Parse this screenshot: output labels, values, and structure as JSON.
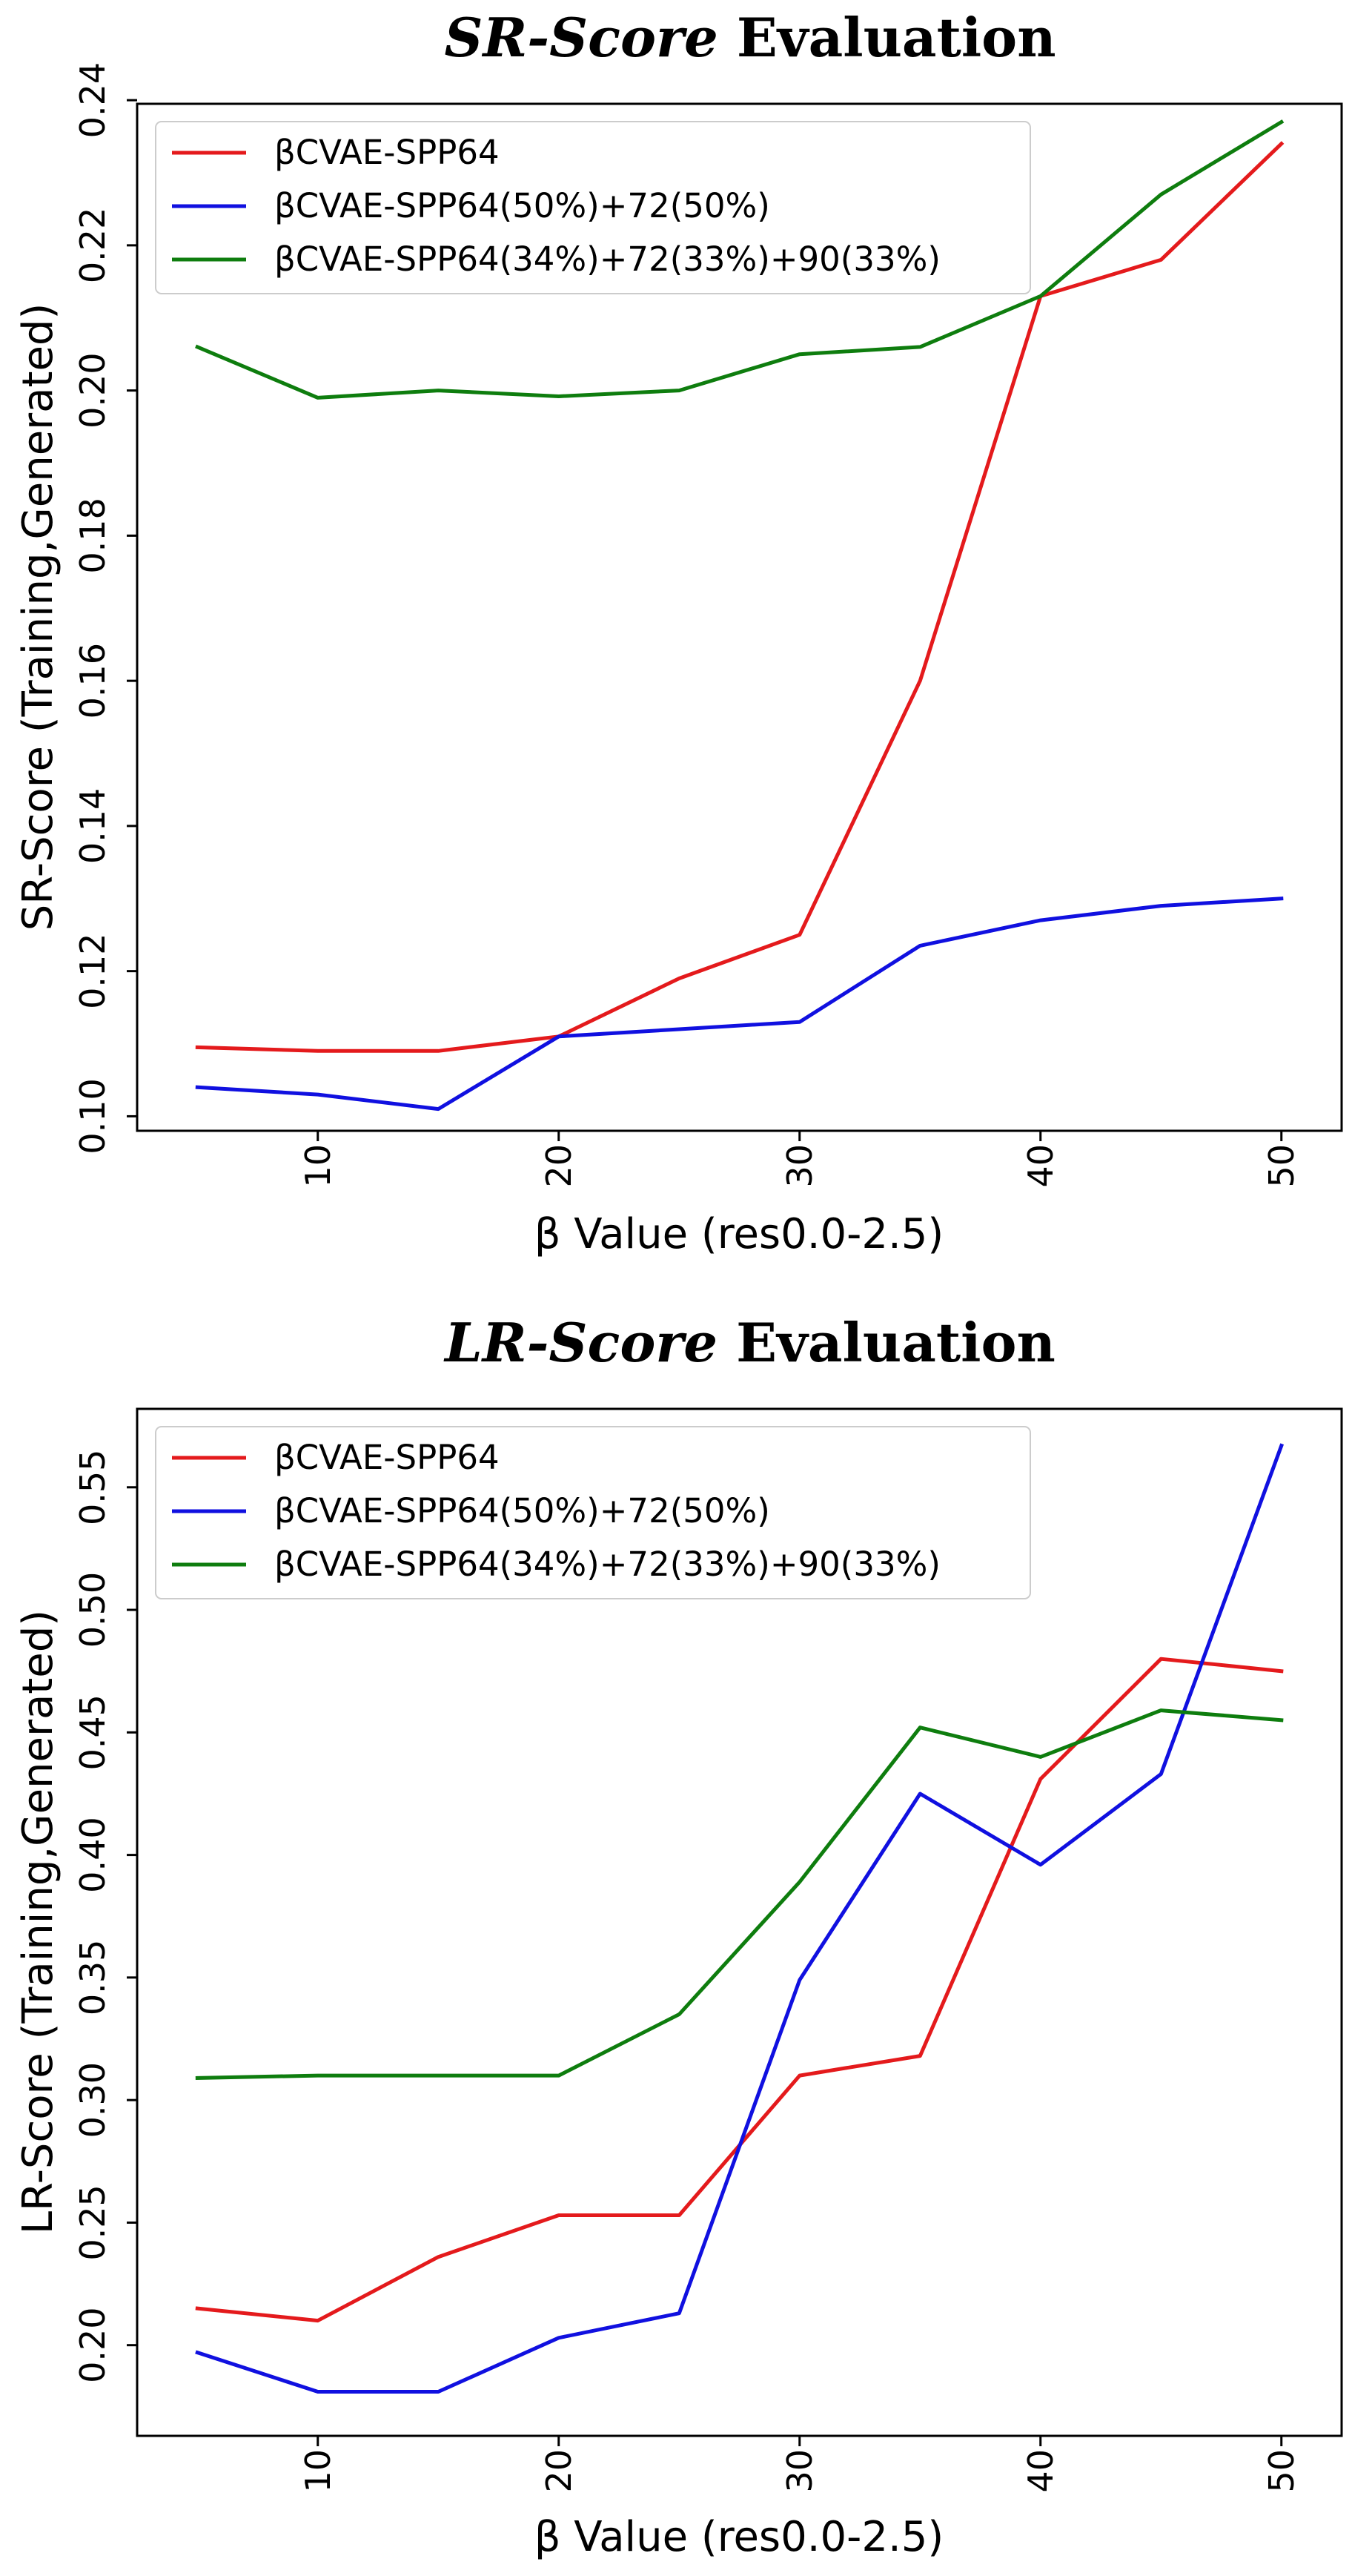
{
  "chart_data": [
    {
      "type": "line",
      "title_italic": "SR-Score",
      "title_rest": " Evaluation",
      "xlabel": "β Value (res0.0-2.5)",
      "ylabel": "SR-Score (Training,Generated)",
      "xlim": [
        2.5,
        52.5
      ],
      "ylim": [
        0.098,
        0.2395
      ],
      "xticks": [
        10,
        20,
        30,
        40,
        50
      ],
      "xtick_labels": [
        "10",
        "20",
        "30",
        "40",
        "50"
      ],
      "yticks": [
        0.1,
        0.12,
        0.14,
        0.16,
        0.18,
        0.2,
        0.22,
        0.24
      ],
      "ytick_labels": [
        "0.10",
        "0.12",
        "0.14",
        "0.16",
        "0.18",
        "0.20",
        "0.22",
        "0.24"
      ],
      "legend_position": "upper-left",
      "x": [
        5,
        10,
        15,
        20,
        25,
        30,
        35,
        40,
        45,
        50
      ],
      "series": [
        {
          "name": "βCVAE-SPP64",
          "color": "#e41a1c",
          "values": [
            0.1095,
            0.109,
            0.109,
            0.111,
            0.119,
            0.125,
            0.16,
            0.213,
            0.218,
            0.234
          ]
        },
        {
          "name": "βCVAE-SPP64(50%)+72(50%)",
          "color": "#1010e0",
          "values": [
            0.104,
            0.103,
            0.101,
            0.111,
            0.112,
            0.113,
            0.1235,
            0.127,
            0.129,
            0.13
          ]
        },
        {
          "name": "βCVAE-SPP64(34%)+72(33%)+90(33%)",
          "color": "#0e7d0e",
          "values": [
            0.206,
            0.199,
            0.2,
            0.1992,
            0.2,
            0.205,
            0.206,
            0.213,
            0.227,
            0.237
          ]
        }
      ]
    },
    {
      "type": "line",
      "title_italic": "LR-Score",
      "title_rest": " Evaluation",
      "xlabel": "β Value (res0.0-2.5)",
      "ylabel": "LR-Score (Training,Generated)",
      "xlim": [
        2.5,
        52.5
      ],
      "ylim": [
        0.163,
        0.582
      ],
      "xticks": [
        10,
        20,
        30,
        40,
        50
      ],
      "xtick_labels": [
        "10",
        "20",
        "30",
        "40",
        "50"
      ],
      "yticks": [
        0.2,
        0.25,
        0.3,
        0.35,
        0.4,
        0.45,
        0.5,
        0.55
      ],
      "ytick_labels": [
        "0.20",
        "0.25",
        "0.30",
        "0.35",
        "0.40",
        "0.45",
        "0.50",
        "0.55"
      ],
      "legend_position": "upper-left",
      "x": [
        5,
        10,
        15,
        20,
        25,
        30,
        35,
        40,
        45,
        50
      ],
      "series": [
        {
          "name": "βCVAE-SPP64",
          "color": "#e41a1c",
          "values": [
            0.215,
            0.21,
            0.236,
            0.253,
            0.253,
            0.31,
            0.318,
            0.431,
            0.48,
            0.475
          ]
        },
        {
          "name": "βCVAE-SPP64(50%)+72(50%)",
          "color": "#1010e0",
          "values": [
            0.197,
            0.181,
            0.181,
            0.203,
            0.213,
            0.349,
            0.425,
            0.396,
            0.433,
            0.567
          ]
        },
        {
          "name": "βCVAE-SPP64(34%)+72(33%)+90(33%)",
          "color": "#0e7d0e",
          "values": [
            0.309,
            0.31,
            0.31,
            0.31,
            0.335,
            0.389,
            0.452,
            0.44,
            0.459,
            0.455
          ]
        }
      ]
    }
  ]
}
